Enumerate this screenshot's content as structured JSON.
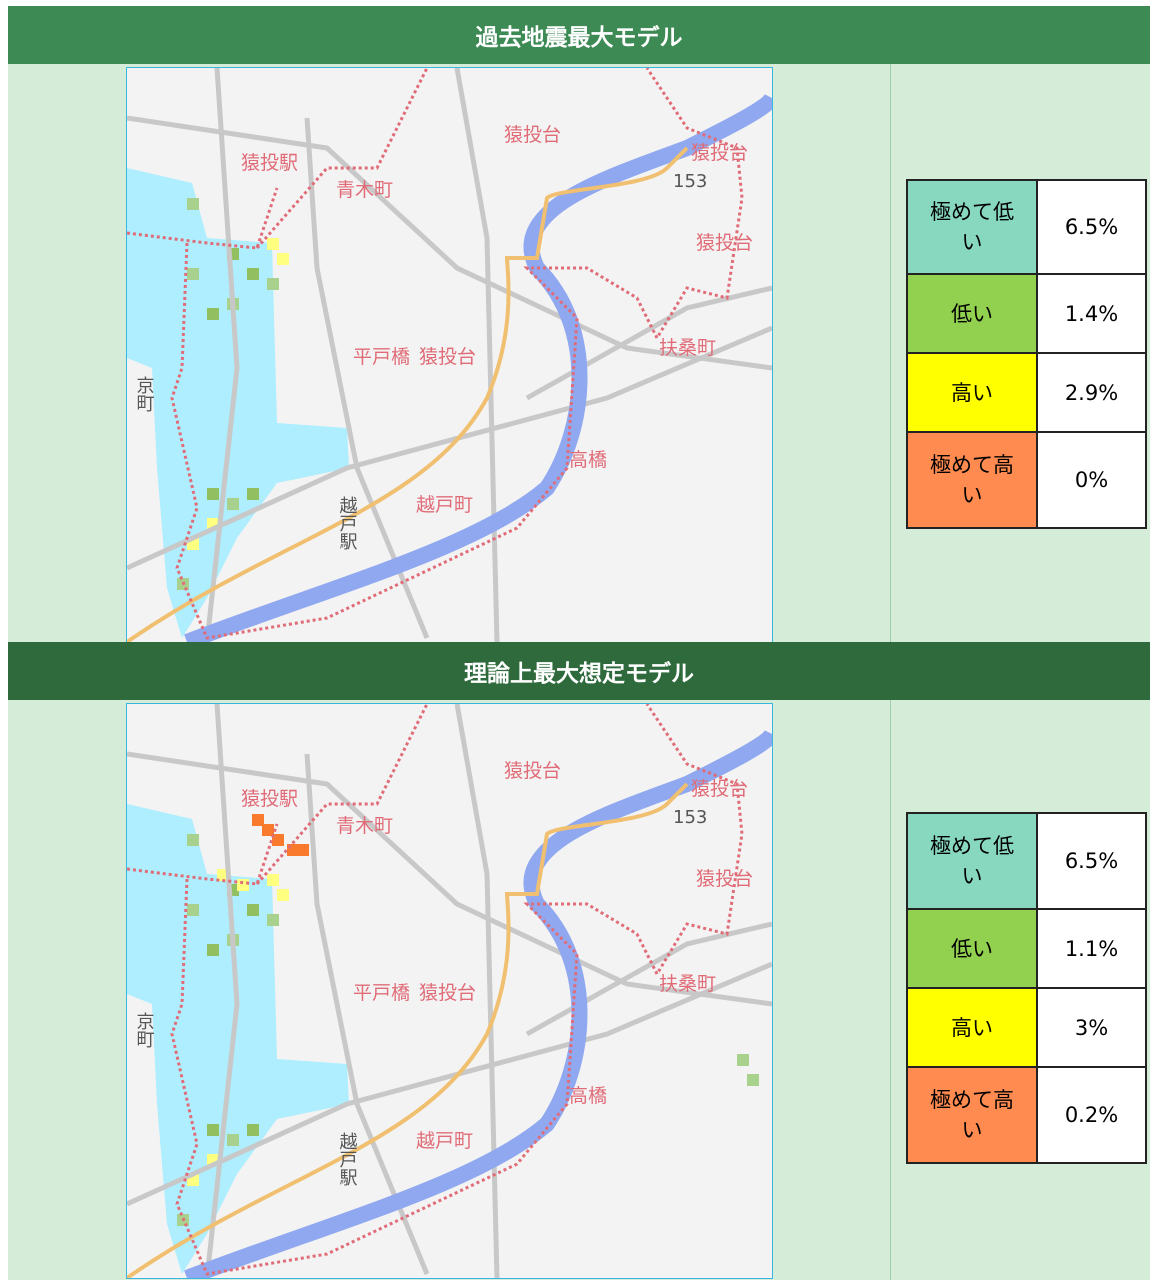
{
  "sections": [
    {
      "title": "過去地震最大モデル",
      "map_labels": [
        "猿投駅",
        "青木町",
        "猿投台",
        "猿投台",
        "猿投台",
        "平戸橋",
        "猿投台",
        "扶桑町",
        "高橋",
        "越戸町",
        "越戸駅",
        "京町",
        "153"
      ],
      "legend": [
        {
          "label": "極めて低い",
          "value": "6.5%",
          "color": "#88d8c0"
        },
        {
          "label": "低い",
          "value": "1.4%",
          "color": "#92d050"
        },
        {
          "label": "高い",
          "value": "2.9%",
          "color": "#ffff00"
        },
        {
          "label": "極めて高い",
          "value": "0%",
          "color": "#ff8b50"
        }
      ]
    },
    {
      "title": "理論上最大想定モデル",
      "map_labels": [
        "猿投駅",
        "青木町",
        "猿投台",
        "猿投台",
        "猿投台",
        "平戸橋",
        "猿投台",
        "扶桑町",
        "高橋",
        "越戸町",
        "越戸駅",
        "京町",
        "153"
      ],
      "legend": [
        {
          "label": "極めて低い",
          "value": "6.5%",
          "color": "#88d8c0"
        },
        {
          "label": "低い",
          "value": "1.1%",
          "color": "#92d050"
        },
        {
          "label": "高い",
          "value": "3%",
          "color": "#ffff00"
        },
        {
          "label": "極めて高い",
          "value": "0.2%",
          "color": "#ff8b50"
        }
      ]
    }
  ]
}
